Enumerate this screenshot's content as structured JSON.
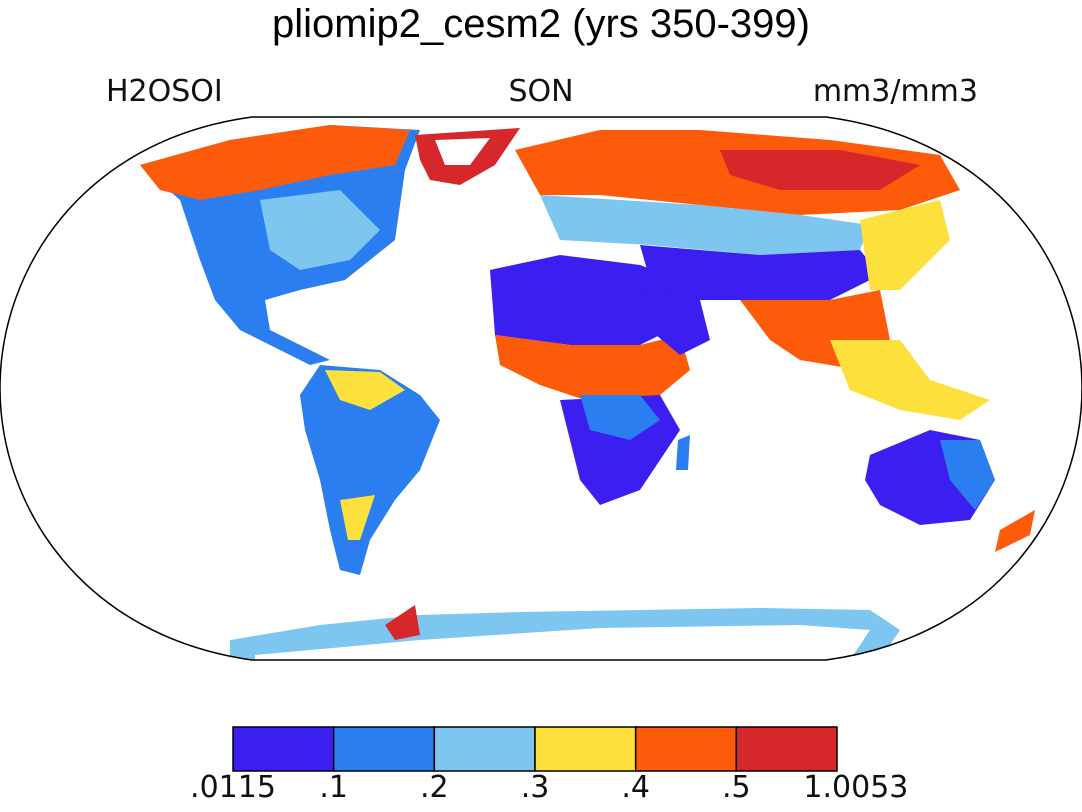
{
  "title": "pliomip2_cesm2 (yrs 350-399)",
  "variable": "H2OSOI",
  "season": "SON",
  "units": "mm3/mm3",
  "colorbar": {
    "colors": [
      "#3a1ff0",
      "#2a7ef0",
      "#7cc6f0",
      "#fde03c",
      "#fd5a0a",
      "#d6282a"
    ],
    "boundaries": [
      ".0115",
      ".1",
      ".2",
      ".3",
      ".4",
      ".5",
      "1.0053"
    ]
  },
  "map": {
    "projection": "robinson",
    "lon_range": [
      -180,
      180
    ],
    "lat_range": [
      -90,
      90
    ]
  }
}
